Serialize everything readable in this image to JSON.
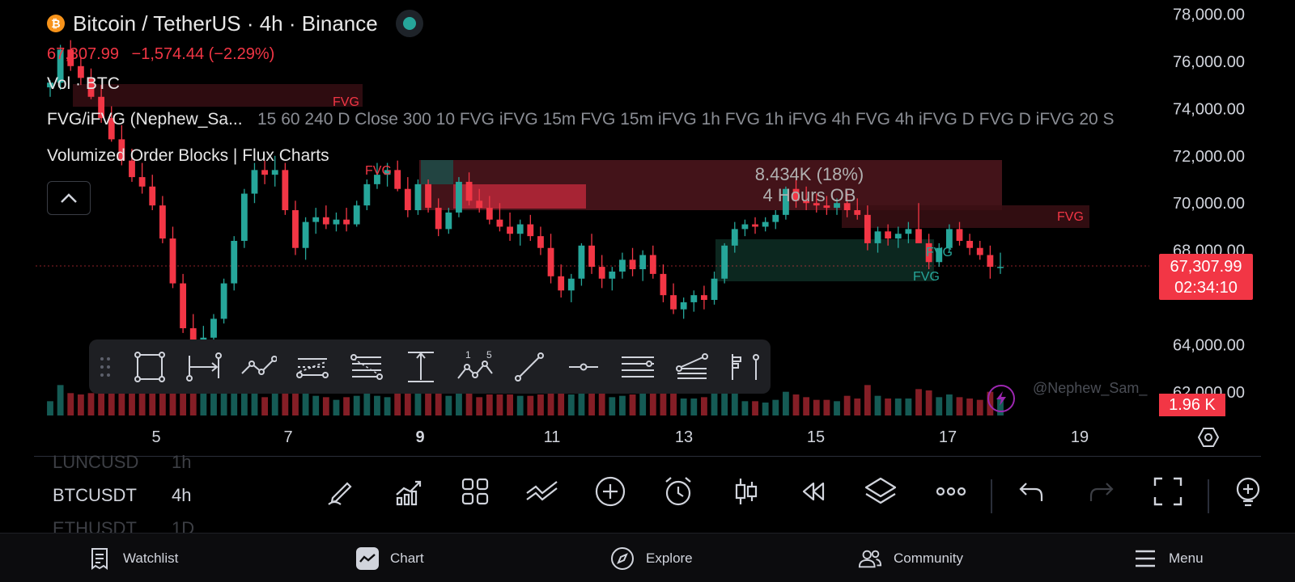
{
  "header": {
    "symbol_title": "Bitcoin / TetherUS · 4h · Binance",
    "price": "67,307.99",
    "change": "−1,574.44 (−2.29%)",
    "vol_label": "Vol · BTC",
    "indicator_fvg": "FVG/iFVG (Nephew_Sa...",
    "indicator_fvg_params": "15 60 240 D Close 300 10 FVG iFVG 15m FVG 15m iFVG 1h FVG 1h iFVG 4h FVG 4h iFVG D FVG D iFVG 20 S",
    "indicator_ob": "Volumized Order Blocks | Flux Charts"
  },
  "chart_data": {
    "type": "candlestick",
    "symbol": "BTCUSDT",
    "interval": "4h",
    "y_ticks": [
      "78,000.00",
      "76,000.00",
      "74,000.00",
      "72,000.00",
      "70,000.00",
      "68,000.00",
      "64,000.00",
      "62,000.00"
    ],
    "y_range": [
      60800,
      78600
    ],
    "x_ticks": [
      "5",
      "7",
      "9",
      "11",
      "13",
      "15",
      "17",
      "19"
    ],
    "last_price": 67307.99,
    "series_colors": {
      "up": "#26a69a",
      "down": "#f23645"
    },
    "candles": [
      [
        74900,
        75200,
        74500,
        75100
      ],
      [
        75100,
        76700,
        74800,
        76500
      ],
      [
        76500,
        76900,
        75600,
        75800
      ],
      [
        75800,
        76200,
        75000,
        75300
      ],
      [
        75300,
        75700,
        74400,
        74500
      ],
      [
        74500,
        75000,
        73400,
        73600
      ],
      [
        73600,
        74100,
        72600,
        72700
      ],
      [
        72700,
        73300,
        71600,
        71800
      ],
      [
        71800,
        72300,
        70900,
        71100
      ],
      [
        71100,
        71700,
        70400,
        70700
      ],
      [
        70700,
        71200,
        69700,
        69900
      ],
      [
        69900,
        70300,
        68300,
        68500
      ],
      [
        68500,
        69000,
        66400,
        66600
      ],
      [
        66600,
        67000,
        64500,
        64700
      ],
      [
        64700,
        65300,
        62800,
        63200
      ],
      [
        63200,
        64800,
        62600,
        64300
      ],
      [
        64300,
        65300,
        63700,
        65100
      ],
      [
        65100,
        66800,
        64900,
        66600
      ],
      [
        66600,
        68600,
        66300,
        68400
      ],
      [
        68400,
        70600,
        68100,
        70400
      ],
      [
        70400,
        71700,
        70000,
        71400
      ],
      [
        71400,
        71800,
        70800,
        71200
      ],
      [
        71200,
        72000,
        70700,
        71400
      ],
      [
        71400,
        71700,
        69500,
        69700
      ],
      [
        69700,
        70100,
        67800,
        68100
      ],
      [
        68100,
        69400,
        67600,
        69200
      ],
      [
        69200,
        69800,
        68700,
        69400
      ],
      [
        69400,
        69900,
        68900,
        69100
      ],
      [
        69100,
        69600,
        68800,
        69300
      ],
      [
        69300,
        69800,
        68800,
        69100
      ],
      [
        69100,
        70100,
        69000,
        69900
      ],
      [
        69900,
        71000,
        69700,
        70800
      ],
      [
        70800,
        71700,
        70600,
        71200
      ],
      [
        71200,
        71700,
        70700,
        71400
      ],
      [
        71400,
        71800,
        70500,
        70600
      ],
      [
        70600,
        71100,
        69400,
        69700
      ],
      [
        69700,
        71000,
        69500,
        70800
      ],
      [
        70800,
        71000,
        69600,
        69800
      ],
      [
        69800,
        70200,
        68600,
        68900
      ],
      [
        68900,
        69800,
        68700,
        69600
      ],
      [
        69600,
        71100,
        69400,
        70900
      ],
      [
        70900,
        71300,
        69900,
        70100
      ],
      [
        70100,
        70600,
        69600,
        69800
      ],
      [
        69800,
        70300,
        69100,
        69300
      ],
      [
        69300,
        70000,
        68800,
        69000
      ],
      [
        69000,
        69600,
        68400,
        68700
      ],
      [
        68700,
        69300,
        68200,
        69100
      ],
      [
        69100,
        69500,
        68400,
        68600
      ],
      [
        68600,
        69000,
        67800,
        68100
      ],
      [
        68100,
        68700,
        66600,
        66900
      ],
      [
        66900,
        67400,
        66000,
        66300
      ],
      [
        66300,
        67000,
        65800,
        66800
      ],
      [
        66800,
        68300,
        66500,
        68200
      ],
      [
        68200,
        68700,
        67000,
        67300
      ],
      [
        67300,
        67800,
        66400,
        66800
      ],
      [
        66800,
        67300,
        66300,
        67100
      ],
      [
        67100,
        67900,
        66800,
        67600
      ],
      [
        67600,
        68100,
        66900,
        67200
      ],
      [
        67200,
        68000,
        66700,
        67800
      ],
      [
        67800,
        68200,
        66800,
        67000
      ],
      [
        67000,
        67400,
        65800,
        66100
      ],
      [
        66100,
        66600,
        65300,
        65500
      ],
      [
        65500,
        66000,
        65100,
        65800
      ],
      [
        65800,
        66300,
        65400,
        66100
      ],
      [
        66100,
        66500,
        65500,
        65900
      ],
      [
        65900,
        67100,
        65700,
        66800
      ],
      [
        66800,
        68300,
        66600,
        68200
      ],
      [
        68200,
        69200,
        67900,
        68900
      ],
      [
        68900,
        69300,
        68600,
        69100
      ],
      [
        69100,
        69400,
        68700,
        69000
      ],
      [
        69000,
        69400,
        68800,
        69200
      ],
      [
        69200,
        69700,
        68900,
        69500
      ],
      [
        69500,
        70700,
        69300,
        70600
      ],
      [
        70600,
        71000,
        69800,
        70100
      ],
      [
        70100,
        70700,
        69700,
        70000
      ],
      [
        70000,
        70400,
        69600,
        69900
      ],
      [
        69900,
        70300,
        69500,
        69800
      ],
      [
        69800,
        70200,
        69500,
        70000
      ],
      [
        70000,
        70500,
        69400,
        69700
      ],
      [
        69700,
        70200,
        69300,
        69500
      ],
      [
        69500,
        69900,
        68000,
        68300
      ],
      [
        68300,
        69000,
        67900,
        68800
      ],
      [
        68800,
        69100,
        68200,
        68500
      ],
      [
        68500,
        69000,
        68100,
        68700
      ],
      [
        68700,
        69200,
        68300,
        68900
      ],
      [
        68900,
        70000,
        68400,
        68300
      ],
      [
        68300,
        68700,
        67200,
        67500
      ],
      [
        67500,
        68300,
        67300,
        68100
      ],
      [
        68100,
        69100,
        67900,
        68900
      ],
      [
        68900,
        69200,
        68200,
        68400
      ],
      [
        68400,
        68700,
        67800,
        68100
      ],
      [
        68100,
        68400,
        67600,
        67800
      ],
      [
        67800,
        68200,
        66800,
        67300
      ],
      [
        67300,
        67900,
        67000,
        67300
      ]
    ],
    "fvg_labels": [
      "FVG",
      "FVG",
      "FVG",
      "FVG",
      "FVG"
    ],
    "order_block": {
      "volume_label": "8.434K (18%)",
      "timeframe_label": "4 Hours OB"
    },
    "last_price_tag": "67,307.99",
    "countdown": "02:34:10",
    "volume_tag": "1.96 K",
    "watermark": "@Nephew_Sam_"
  },
  "bottom": {
    "symbols": [
      {
        "symbol": "LUNCUSD",
        "tf": "1h"
      },
      {
        "symbol": "BTCUSDT",
        "tf": "4h"
      },
      {
        "symbol": "ETHUSDT",
        "tf": "1D"
      }
    ],
    "toolbar_icons": [
      "pencil-icon",
      "indicators-icon",
      "layout-grid-icon",
      "patterns-icon",
      "add-icon",
      "alert-icon",
      "candle-type-icon",
      "replay-icon",
      "layers-icon",
      "more-icon",
      "undo-icon",
      "redo-icon",
      "fullscreen-icon",
      "zoom-plus-icon"
    ]
  },
  "nav": {
    "watchlist": "Watchlist",
    "chart": "Chart",
    "explore": "Explore",
    "community": "Community",
    "menu": "Menu"
  },
  "colors": {
    "up": "#26a69a",
    "down": "#f23645",
    "background": "#000000",
    "panel": "#1e1f23"
  }
}
